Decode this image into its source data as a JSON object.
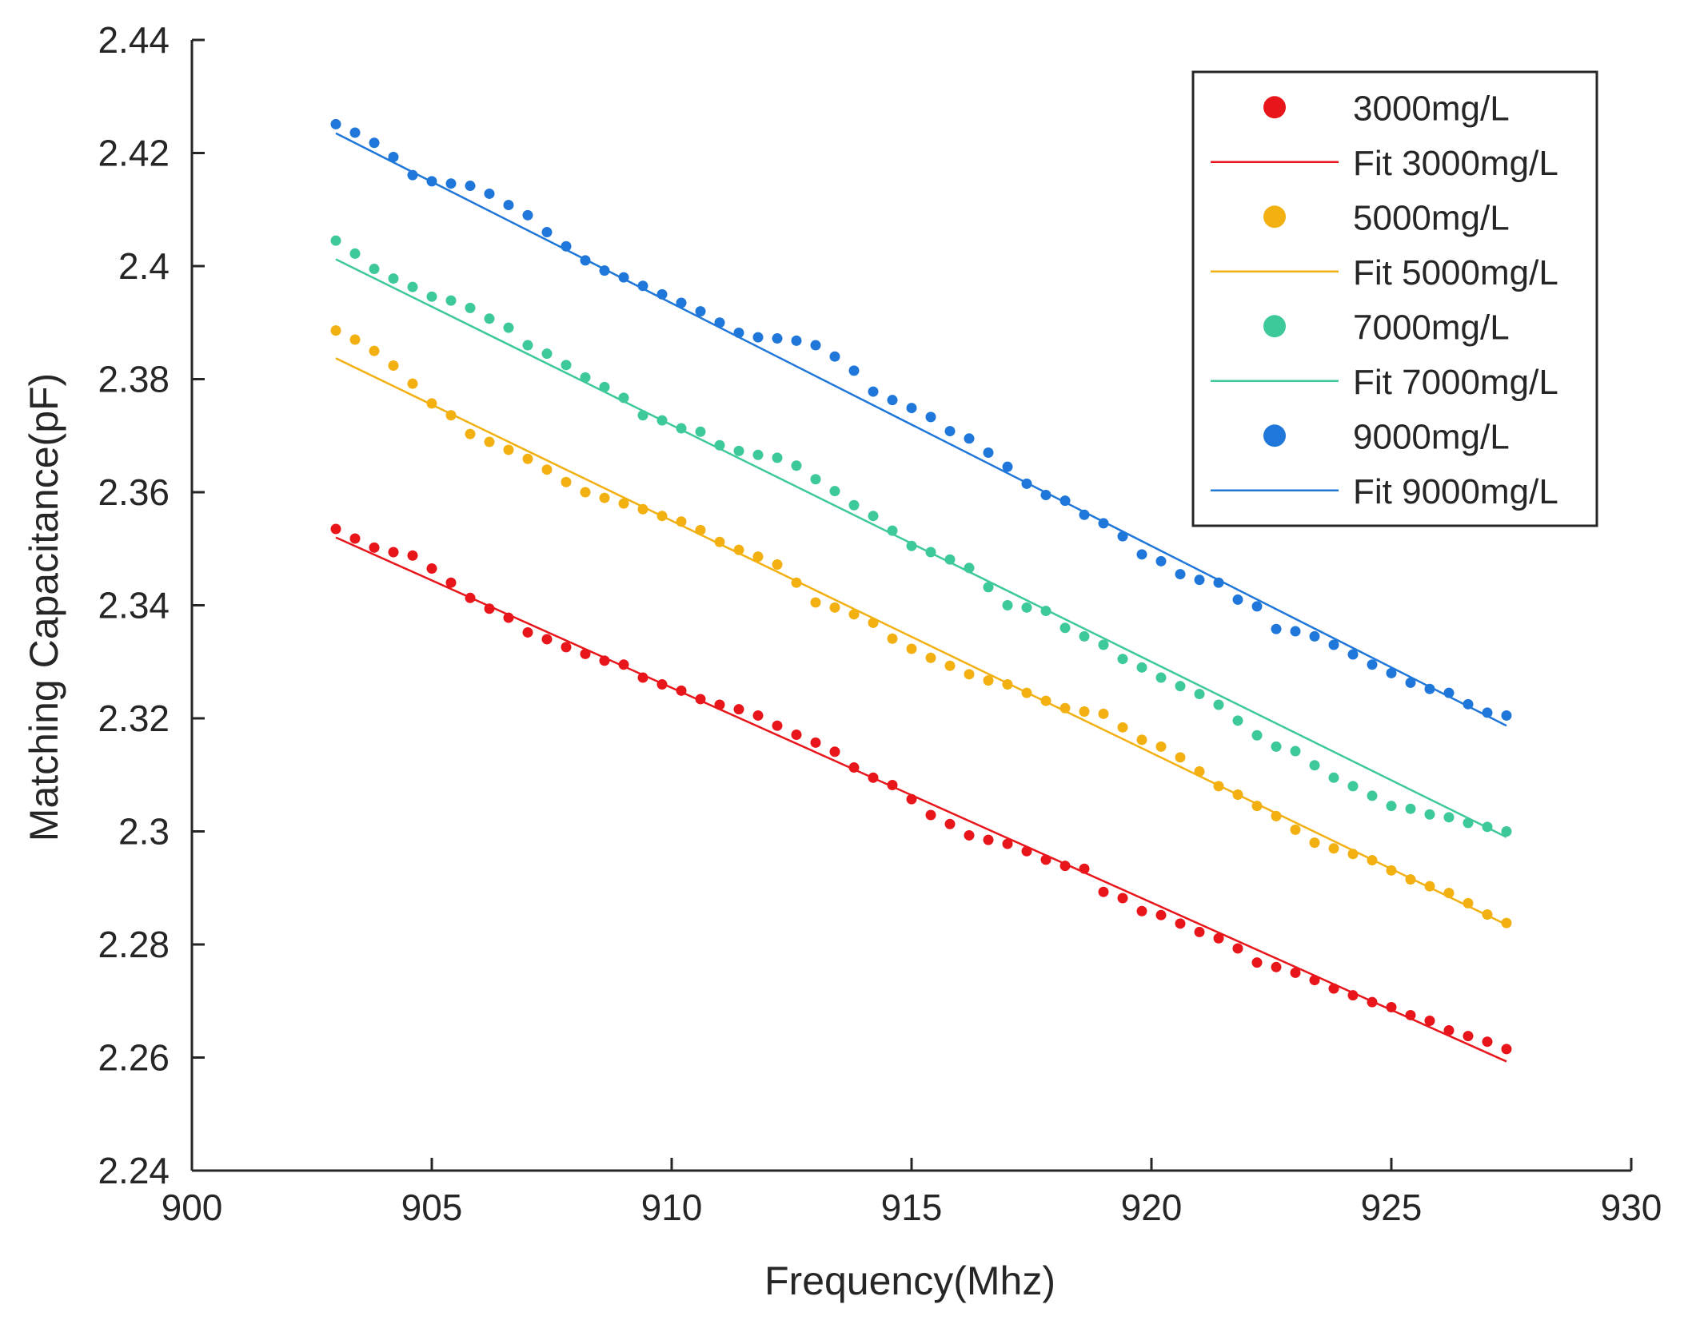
{
  "chart_data": {
    "type": "scatter",
    "title": "",
    "xlabel": "Frequency(Mhz)",
    "ylabel": "Matching Capacitance(pF)",
    "xlim": [
      900,
      930
    ],
    "ylim": [
      2.24,
      2.44
    ],
    "xticks": [
      900,
      905,
      910,
      915,
      920,
      925,
      930
    ],
    "yticks": [
      2.24,
      2.26,
      2.28,
      2.3,
      2.32,
      2.34,
      2.36,
      2.38,
      2.4,
      2.42,
      2.44
    ],
    "xtick_labels": [
      "900",
      "905",
      "910",
      "915",
      "920",
      "925",
      "930"
    ],
    "ytick_labels": [
      "2.24",
      "2.26",
      "2.28",
      "2.3",
      "2.32",
      "2.34",
      "2.36",
      "2.38",
      "2.4",
      "2.42",
      "2.44"
    ],
    "grid": false,
    "legend_position": "top-right",
    "x": [
      903.0,
      903.4,
      903.8,
      904.2,
      904.6,
      905.0,
      905.4,
      905.8,
      906.2,
      906.6,
      907.0,
      907.4,
      907.8,
      908.2,
      908.6,
      909.0,
      909.4,
      909.8,
      910.2,
      910.6,
      911.0,
      911.4,
      911.8,
      912.2,
      912.6,
      913.0,
      913.4,
      913.8,
      914.2,
      914.6,
      915.0,
      915.4,
      915.8,
      916.2,
      916.6,
      917.0,
      917.4,
      917.8,
      918.2,
      918.6,
      919.0,
      919.4,
      919.8,
      920.2,
      920.6,
      921.0,
      921.4,
      921.8,
      922.2,
      922.6,
      923.0,
      923.4,
      923.8,
      924.2,
      924.6,
      925.0,
      925.4,
      925.8,
      926.2,
      926.6,
      927.0,
      927.4
    ],
    "series": [
      {
        "name": "3000mg/L",
        "color": "#e8161b",
        "values": [
          2.3535,
          2.3518,
          2.3502,
          2.3494,
          2.3488,
          2.3465,
          2.344,
          2.3413,
          2.3394,
          2.3378,
          2.3352,
          2.334,
          2.3326,
          2.3314,
          2.3302,
          2.3295,
          2.3272,
          2.326,
          2.3249,
          2.3234,
          2.3224,
          2.3216,
          2.3205,
          2.3187,
          2.3171,
          2.3157,
          2.3141,
          2.3113,
          2.3095,
          2.3082,
          2.3057,
          2.3029,
          2.3013,
          2.2993,
          2.2985,
          2.2978,
          2.2965,
          2.295,
          2.2939,
          2.2934,
          2.2893,
          2.2882,
          2.2859,
          2.2852,
          2.2837,
          2.2822,
          2.2811,
          2.2793,
          2.2768,
          2.276,
          2.275,
          2.2737,
          2.2722,
          2.271,
          2.2698,
          2.2689,
          2.2675,
          2.2665,
          2.2648,
          2.2638,
          2.2628,
          2.2615
        ]
      },
      {
        "name": "Fit 3000mg/L",
        "color": "#e8161b",
        "line": true,
        "x": [
          903.0,
          927.4
        ],
        "values": [
          2.352,
          2.2593
        ]
      },
      {
        "name": "5000mg/L",
        "color": "#f2b011",
        "values": [
          2.3886,
          2.387,
          2.385,
          2.3824,
          2.3792,
          2.3757,
          2.3736,
          2.3703,
          2.3689,
          2.3675,
          2.3659,
          2.364,
          2.3618,
          2.36,
          2.359,
          2.358,
          2.357,
          2.3558,
          2.3548,
          2.3533,
          2.3512,
          2.3498,
          2.3486,
          2.3472,
          2.344,
          2.3405,
          2.3396,
          2.3384,
          2.3369,
          2.3341,
          2.3323,
          2.3307,
          2.3293,
          2.3278,
          2.3267,
          2.326,
          2.3245,
          2.3231,
          2.3218,
          2.3212,
          2.3208,
          2.3184,
          2.3162,
          2.315,
          2.3131,
          2.3106,
          2.308,
          2.3065,
          2.3045,
          2.3027,
          2.3003,
          2.298,
          2.297,
          2.296,
          2.2949,
          2.2931,
          2.2915,
          2.2903,
          2.2891,
          2.2873,
          2.2853,
          2.2838
        ]
      },
      {
        "name": "Fit 5000mg/L",
        "color": "#f2b011",
        "line": true,
        "x": [
          903.0,
          927.4
        ],
        "values": [
          2.3837,
          2.2835
        ]
      },
      {
        "name": "7000mg/L",
        "color": "#3ec99a",
        "values": [
          2.4045,
          2.4022,
          2.3995,
          2.3978,
          2.3963,
          2.3946,
          2.3939,
          2.3926,
          2.3907,
          2.3891,
          2.386,
          2.3845,
          2.3825,
          2.3803,
          2.3786,
          2.3767,
          2.3736,
          2.3727,
          2.3713,
          2.3707,
          2.3683,
          2.3673,
          2.3666,
          2.3661,
          2.3647,
          2.3623,
          2.3602,
          2.3577,
          2.3558,
          2.3532,
          2.3505,
          2.3494,
          2.3481,
          2.3466,
          2.3432,
          2.34,
          2.3396,
          2.339,
          2.336,
          2.3345,
          2.333,
          2.3305,
          2.329,
          2.3272,
          2.3257,
          2.3243,
          2.3224,
          2.3196,
          2.317,
          2.315,
          2.3142,
          2.3117,
          2.3095,
          2.308,
          2.3063,
          2.3045,
          2.304,
          2.303,
          2.3025,
          2.3015,
          2.3008,
          2.3
        ]
      },
      {
        "name": "Fit 7000mg/L",
        "color": "#3ec99a",
        "line": true,
        "x": [
          903.0,
          927.4
        ],
        "values": [
          2.4012,
          2.299
        ]
      },
      {
        "name": "9000mg/L",
        "color": "#1f77d9",
        "values": [
          2.4251,
          2.4236,
          2.4218,
          2.4193,
          2.4161,
          2.415,
          2.4146,
          2.4142,
          2.4128,
          2.4108,
          2.409,
          2.406,
          2.4035,
          2.401,
          2.3992,
          2.398,
          2.3965,
          2.395,
          2.3935,
          2.392,
          2.39,
          2.3882,
          2.3874,
          2.3872,
          2.3868,
          2.386,
          2.384,
          2.3815,
          2.3778,
          2.3763,
          2.3749,
          2.3733,
          2.3708,
          2.3695,
          2.367,
          2.3645,
          2.3615,
          2.3595,
          2.3585,
          2.356,
          2.3545,
          2.3522,
          2.349,
          2.3478,
          2.3455,
          2.3445,
          2.344,
          2.341,
          2.3398,
          2.3358,
          2.3354,
          2.3345,
          2.333,
          2.3313,
          2.3295,
          2.328,
          2.3263,
          2.3252,
          2.3245,
          2.3225,
          2.321,
          2.3205
        ]
      },
      {
        "name": "Fit 9000mg/L",
        "color": "#1f77d9",
        "line": true,
        "x": [
          903.0,
          927.4
        ],
        "values": [
          2.4235,
          2.3187
        ]
      }
    ]
  }
}
